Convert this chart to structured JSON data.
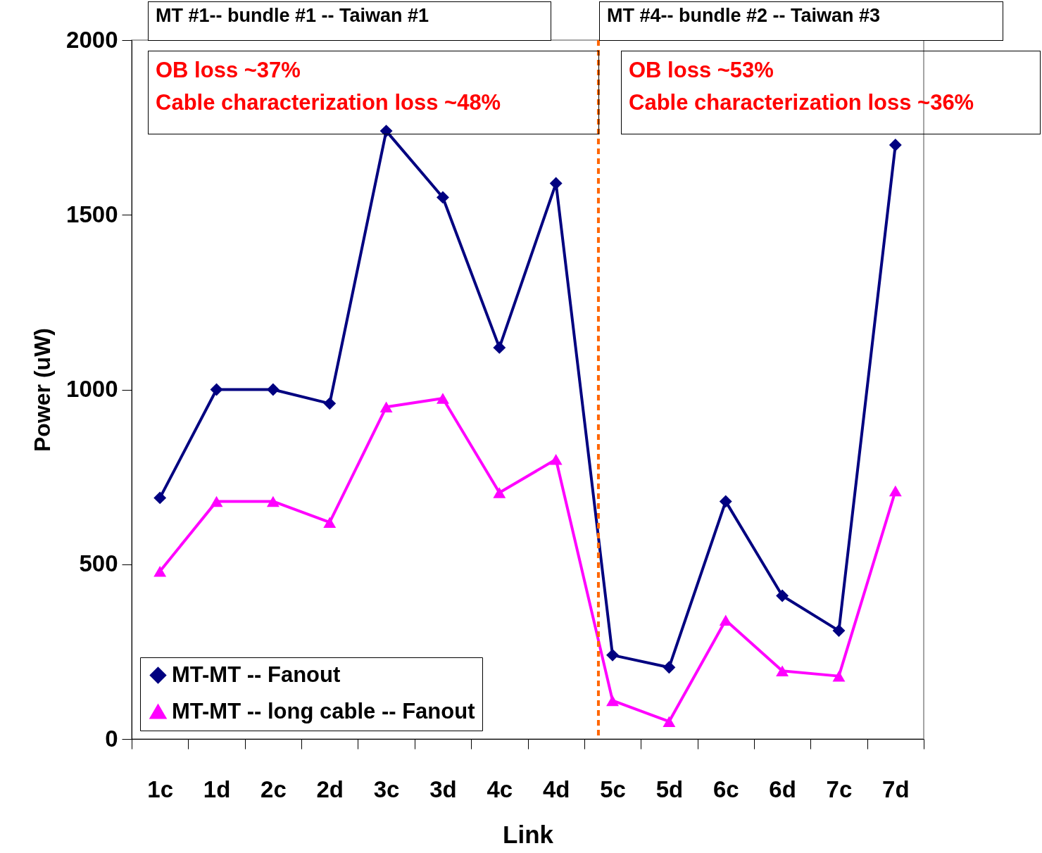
{
  "chart_data": {
    "type": "line",
    "xlabel": "Link",
    "ylabel": "Power (uW)",
    "categories": [
      "1c",
      "1d",
      "2c",
      "2d",
      "3c",
      "3d",
      "4c",
      "4d",
      "5c",
      "5d",
      "6c",
      "6d",
      "7c",
      "7d"
    ],
    "series": [
      {
        "name": "MT-MT -- Fanout",
        "color": "#000080",
        "marker": "diamond",
        "values": [
          690,
          1000,
          1000,
          960,
          1740,
          1550,
          1120,
          1590,
          240,
          205,
          680,
          410,
          310,
          1700
        ]
      },
      {
        "name": "MT-MT -- long cable -- Fanout",
        "color": "#ff00ff",
        "marker": "triangle",
        "values": [
          480,
          680,
          680,
          620,
          950,
          975,
          705,
          800,
          110,
          50,
          340,
          195,
          180,
          710
        ]
      }
    ],
    "ylim": [
      0,
      2000
    ],
    "yticks": [
      0,
      500,
      1000,
      1500,
      2000
    ],
    "legend": "bottom left",
    "ref_lines": [
      {
        "axis": "x",
        "value": "5c",
        "color": "#ff6600",
        "line_style": "dashed"
      }
    ],
    "annotations": [
      "MT #1-- bundle #1 -- Taiwan #1",
      "OB loss ~37%",
      "Cable characterization loss ~48%",
      "MT #4-- bundle #2 -- Taiwan #3",
      "OB loss ~53%",
      "Cable characterization loss ~36%"
    ]
  }
}
